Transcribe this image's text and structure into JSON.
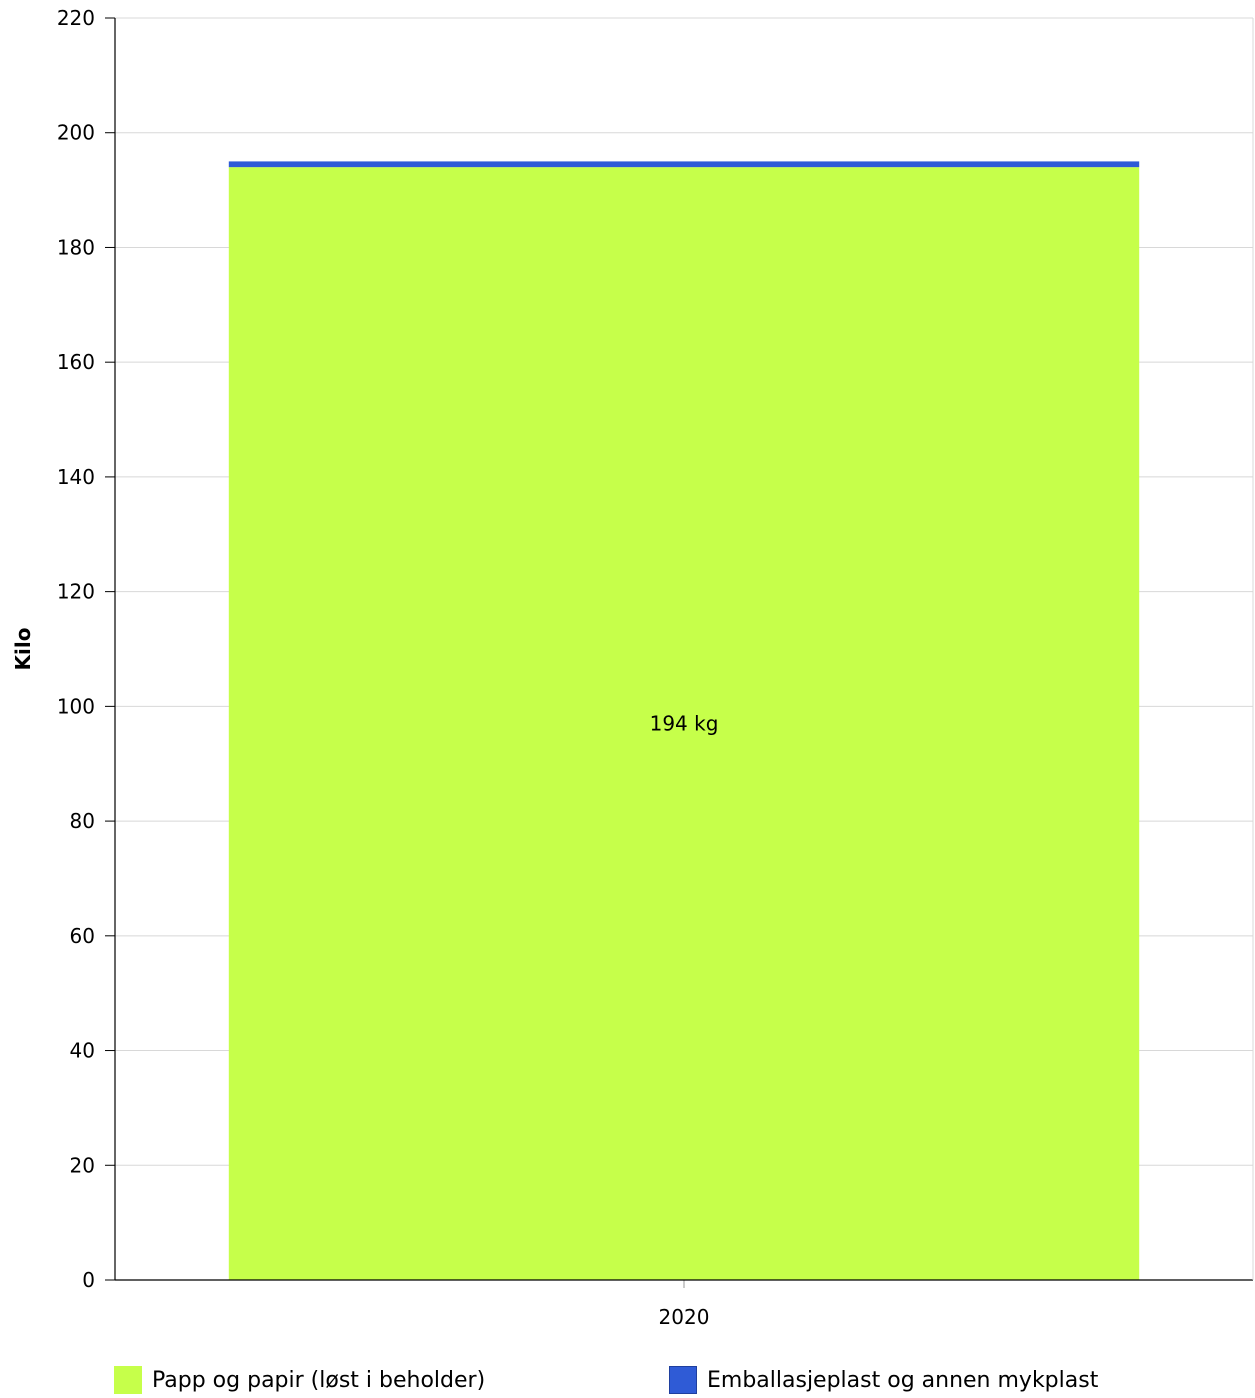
{
  "chart_data": {
    "type": "bar",
    "stacked": true,
    "title": "",
    "xlabel": "",
    "ylabel": "Kilo",
    "categories": [
      "2020"
    ],
    "ylim": [
      0,
      220
    ],
    "yticks": [
      0,
      20,
      40,
      60,
      80,
      100,
      120,
      140,
      160,
      180,
      200,
      220
    ],
    "grid": true,
    "legend_position": "bottom",
    "series": [
      {
        "name": "Papp og papir (løst i beholder)",
        "values": [
          194
        ],
        "color": "#c6ff4a",
        "data_label": "194 kg"
      },
      {
        "name": "Emballasjeplast og annen mykplast",
        "values": [
          1
        ],
        "color": "#2f5bd6",
        "data_label": ""
      }
    ]
  }
}
